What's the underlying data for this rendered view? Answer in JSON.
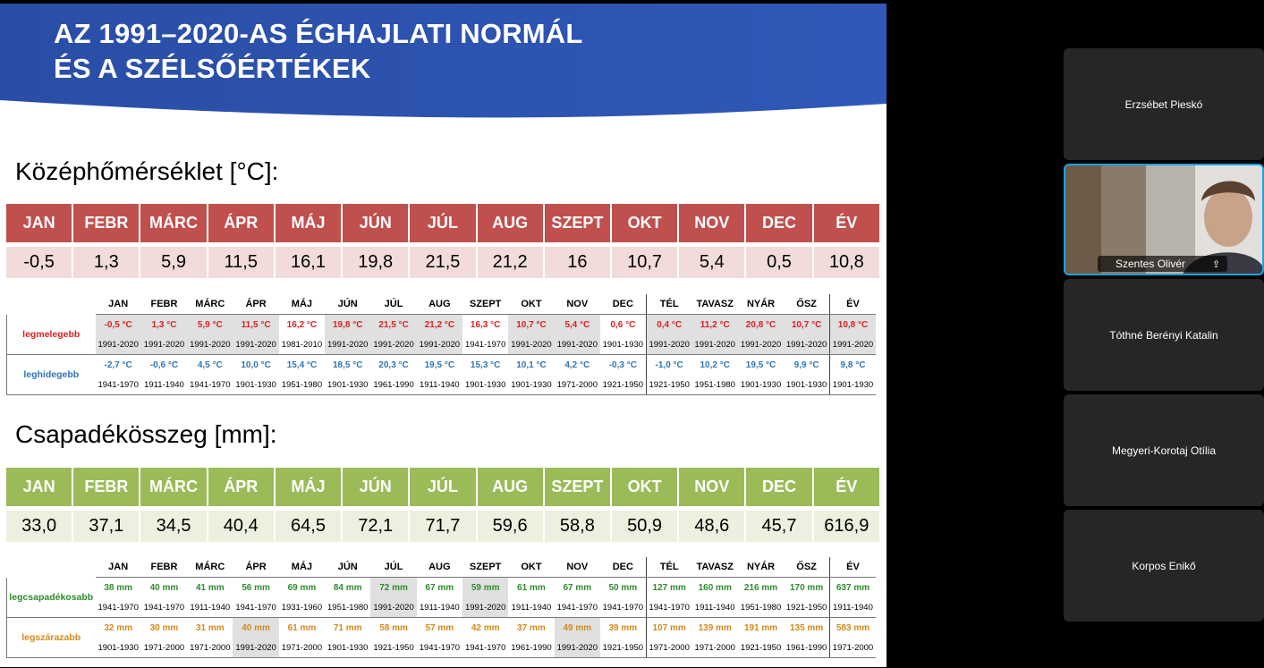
{
  "slide": {
    "title_line1": "AZ 1991–2020-AS ÉGHAJLATI NORMÁL",
    "title_line2": "ÉS A SZÉLSŐÉRTÉKEK",
    "temp_heading": "Középhőmérséklet [°C]:",
    "prec_heading": "Csapadékösszeg [mm]:",
    "months": [
      "JAN",
      "FEBR",
      "MÁRC",
      "ÁPR",
      "MÁJ",
      "JÚN",
      "JÚL",
      "AUG",
      "SZEPT",
      "OKT",
      "NOV",
      "DEC",
      "ÉV"
    ],
    "temp_values": [
      "-0,5",
      "1,3",
      "5,9",
      "11,5",
      "16,1",
      "19,8",
      "21,5",
      "21,2",
      "16",
      "10,7",
      "5,4",
      "0,5",
      "10,8"
    ],
    "prec_values": [
      "33,0",
      "37,1",
      "34,5",
      "40,4",
      "64,5",
      "72,1",
      "71,7",
      "59,6",
      "58,8",
      "50,9",
      "48,6",
      "45,7",
      "616,9"
    ],
    "ext_headers": [
      "JAN",
      "FEBR",
      "MÁRC",
      "ÁPR",
      "MÁJ",
      "JÚN",
      "JÚL",
      "AUG",
      "SZEPT",
      "OKT",
      "NOV",
      "DEC",
      "TÉL",
      "TAVASZ",
      "NYÁR",
      "ŐSZ",
      "ÉV"
    ],
    "temp_ext": {
      "warm_label": "legmelegebb",
      "warm_values": [
        "-0,5 °C",
        "1,3 °C",
        "5,9 °C",
        "11,5 °C",
        "16,2 °C",
        "19,8 °C",
        "21,5 °C",
        "21,2 °C",
        "16,3 °C",
        "10,7 °C",
        "5,4 °C",
        "0,6 °C",
        "0,4 °C",
        "11,2 °C",
        "20,8 °C",
        "10,7 °C",
        "10,8 °C"
      ],
      "warm_years": [
        "1991-2020",
        "1991-2020",
        "1991-2020",
        "1991-2020",
        "1981-2010",
        "1991-2020",
        "1991-2020",
        "1991-2020",
        "1941-1970",
        "1991-2020",
        "1991-2020",
        "1901-1930",
        "1991-2020",
        "1991-2020",
        "1991-2020",
        "1991-2020",
        "1991-2020"
      ],
      "cold_label": "leghidegebb",
      "cold_values": [
        "-2,7 °C",
        "-0,6 °C",
        "4,5 °C",
        "10,0 °C",
        "15,4 °C",
        "18,5 °C",
        "20,3 °C",
        "19,5 °C",
        "15,3 °C",
        "10,1 °C",
        "4,2 °C",
        "-0,3 °C",
        "-1,0 °C",
        "10,2 °C",
        "19,5 °C",
        "9,9 °C",
        "9,8 °C"
      ],
      "cold_years": [
        "1941-1970",
        "1911-1940",
        "1941-1970",
        "1901-1930",
        "1951-1980",
        "1901-1930",
        "1961-1990",
        "1911-1940",
        "1901-1930",
        "1901-1930",
        "1971-2000",
        "1921-1950",
        "1921-1950",
        "1951-1980",
        "1901-1930",
        "1901-1930",
        "1901-1930"
      ]
    },
    "prec_ext": {
      "wet_label": "legcsapadékosabb",
      "wet_values": [
        "38 mm",
        "40 mm",
        "41 mm",
        "56 mm",
        "69 mm",
        "84 mm",
        "72 mm",
        "67 mm",
        "59 mm",
        "61 mm",
        "67 mm",
        "50 mm",
        "127 mm",
        "160 mm",
        "216 mm",
        "170 mm",
        "637 mm"
      ],
      "wet_years": [
        "1941-1970",
        "1941-1970",
        "1911-1940",
        "1941-1970",
        "1931-1960",
        "1951-1980",
        "1991-2020",
        "1911-1940",
        "1991-2020",
        "1911-1940",
        "1941-1970",
        "1941-1970",
        "1941-1970",
        "1911-1940",
        "1951-1980",
        "1921-1950",
        "1911-1940"
      ],
      "dry_label": "legszárazabb",
      "dry_values": [
        "32 mm",
        "30 mm",
        "31 mm",
        "40 mm",
        "61 mm",
        "71 mm",
        "58 mm",
        "57 mm",
        "42 mm",
        "37 mm",
        "49 mm",
        "39 mm",
        "107 mm",
        "139 mm",
        "191 mm",
        "135 mm",
        "583 mm"
      ],
      "dry_years": [
        "1901-1930",
        "1971-2000",
        "1971-2000",
        "1991-2020",
        "1971-2000",
        "1901-1930",
        "1921-1950",
        "1941-1970",
        "1941-1970",
        "1961-1990",
        "1991-2020",
        "1921-1950",
        "1971-2000",
        "1971-2000",
        "1921-1950",
        "1961-1990",
        "1971-2000"
      ]
    }
  },
  "participants": [
    {
      "name": "Erzsébet Pieskó"
    },
    {
      "name": "Szentes Olivér"
    },
    {
      "name": "Tóthné Berényi Katalin"
    },
    {
      "name": "Megyeri-Korotaj Otília"
    },
    {
      "name": "Korpos Enikő"
    }
  ],
  "colors": {
    "temp_header": "#c0504d",
    "temp_value": "#f2dcdb",
    "prec_header": "#9bbb59",
    "prec_value": "#ebf1de",
    "banner": "#2f50a8",
    "active_speaker": "#1fa3e0"
  }
}
